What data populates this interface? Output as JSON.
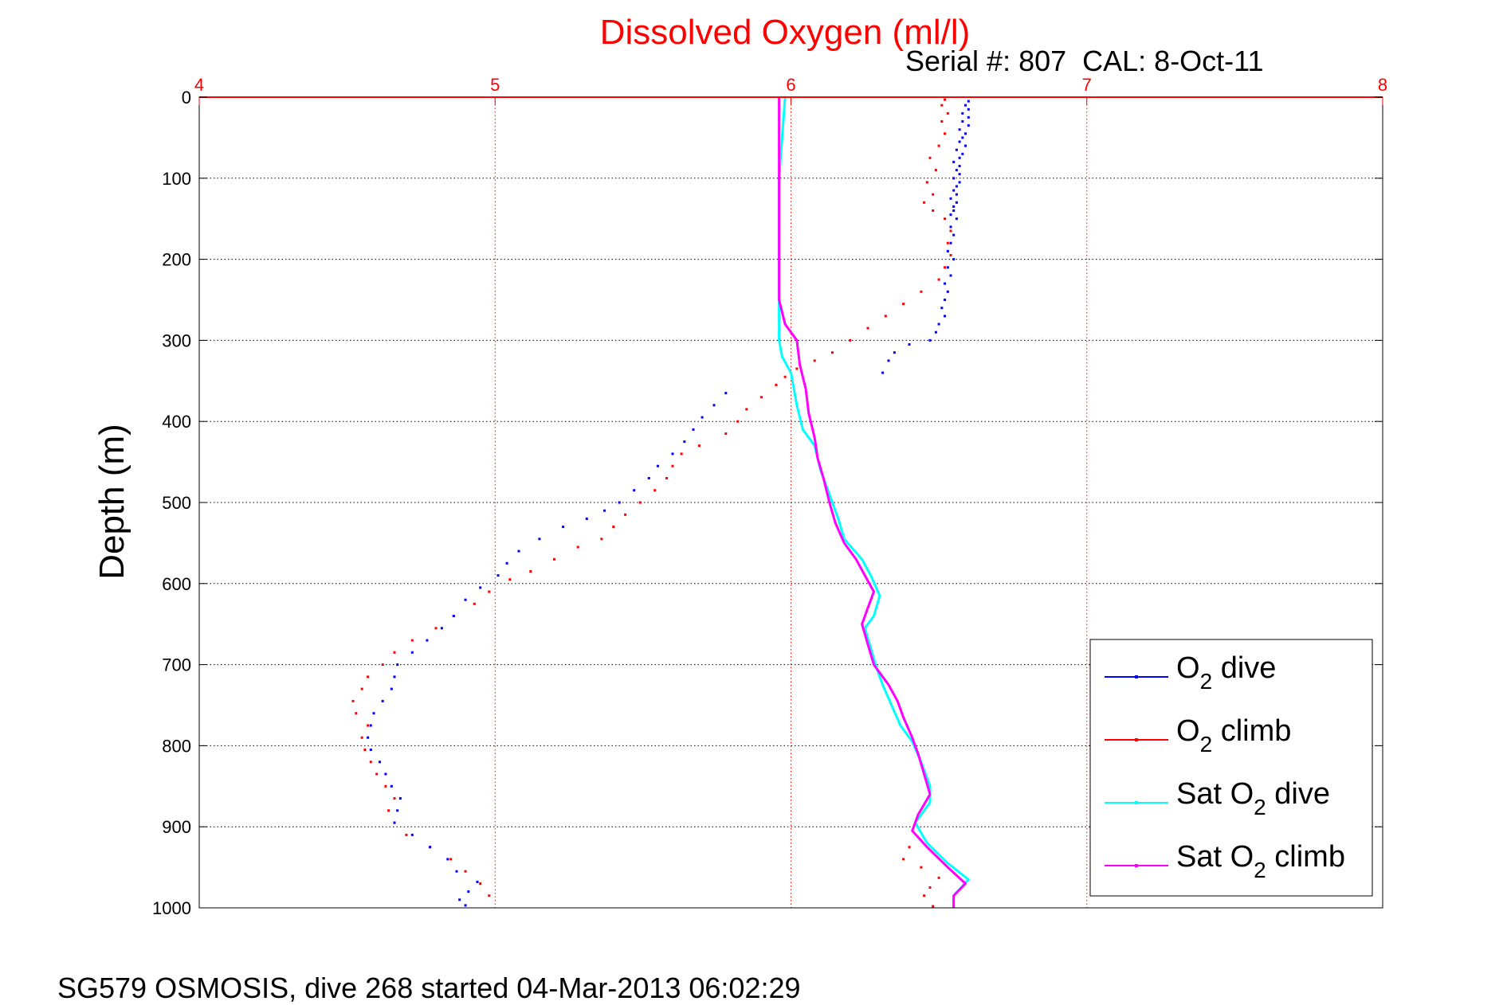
{
  "chart_data": {
    "type": "scatter",
    "title": "Dissolved Oxygen (ml/l)",
    "subtitle": "Serial #: 807  CAL: 8-Oct-11",
    "footer": "SG579 OSMOSIS, dive 268 started 04-Mar-2013 06:02:29",
    "xlabel": "",
    "ylabel": "Depth (m)",
    "xlim": [
      4,
      8
    ],
    "ylim": [
      0,
      1000
    ],
    "y_reversed": true,
    "x_axis_position": "top",
    "xticks": [
      4,
      5,
      6,
      7,
      8
    ],
    "yticks": [
      0,
      100,
      200,
      300,
      400,
      500,
      600,
      700,
      800,
      900,
      1000
    ],
    "grid": true,
    "legend_position": "bottom-right",
    "colors": {
      "title": "#ff0000",
      "xaxis": "#ff0000",
      "xgrid": "#ff0000",
      "ygrid": "#000000",
      "o2_dive": "#0000ff",
      "o2_climb": "#ff0000",
      "sat_dive": "#00ffff",
      "sat_climb": "#ff00ff"
    },
    "series": [
      {
        "key": "o2_dive",
        "label_main": "O",
        "label_sub": "2",
        "label_rest": " dive",
        "style": "dots",
        "points": [
          [
            6.6,
            5
          ],
          [
            6.59,
            10
          ],
          [
            6.6,
            15
          ],
          [
            6.58,
            20
          ],
          [
            6.6,
            25
          ],
          [
            6.58,
            30
          ],
          [
            6.6,
            35
          ],
          [
            6.57,
            40
          ],
          [
            6.59,
            45
          ],
          [
            6.58,
            50
          ],
          [
            6.57,
            55
          ],
          [
            6.59,
            60
          ],
          [
            6.56,
            65
          ],
          [
            6.58,
            70
          ],
          [
            6.57,
            75
          ],
          [
            6.55,
            80
          ],
          [
            6.57,
            85
          ],
          [
            6.56,
            90
          ],
          [
            6.57,
            95
          ],
          [
            6.55,
            100
          ],
          [
            6.57,
            105
          ],
          [
            6.56,
            110
          ],
          [
            6.55,
            115
          ],
          [
            6.56,
            120
          ],
          [
            6.54,
            125
          ],
          [
            6.56,
            130
          ],
          [
            6.55,
            135
          ],
          [
            6.55,
            140
          ],
          [
            6.54,
            145
          ],
          [
            6.56,
            150
          ],
          [
            6.54,
            160
          ],
          [
            6.55,
            170
          ],
          [
            6.54,
            180
          ],
          [
            6.53,
            190
          ],
          [
            6.55,
            200
          ],
          [
            6.53,
            210
          ],
          [
            6.54,
            220
          ],
          [
            6.52,
            230
          ],
          [
            6.53,
            240
          ],
          [
            6.52,
            250
          ],
          [
            6.51,
            260
          ],
          [
            6.52,
            270
          ],
          [
            6.5,
            280
          ],
          [
            6.49,
            290
          ],
          [
            6.47,
            300
          ],
          [
            6.4,
            305
          ],
          [
            6.35,
            315
          ],
          [
            6.33,
            325
          ],
          [
            6.31,
            340
          ],
          [
            5.78,
            365
          ],
          [
            5.74,
            380
          ],
          [
            5.7,
            395
          ],
          [
            5.67,
            410
          ],
          [
            5.64,
            425
          ],
          [
            5.6,
            440
          ],
          [
            5.55,
            455
          ],
          [
            5.52,
            470
          ],
          [
            5.47,
            485
          ],
          [
            5.42,
            500
          ],
          [
            5.37,
            510
          ],
          [
            5.31,
            520
          ],
          [
            5.23,
            530
          ],
          [
            5.15,
            545
          ],
          [
            5.08,
            560
          ],
          [
            5.04,
            575
          ],
          [
            5.01,
            590
          ],
          [
            4.95,
            605
          ],
          [
            4.9,
            620
          ],
          [
            4.86,
            640
          ],
          [
            4.82,
            655
          ],
          [
            4.77,
            670
          ],
          [
            4.72,
            685
          ],
          [
            4.67,
            700
          ],
          [
            4.66,
            715
          ],
          [
            4.65,
            730
          ],
          [
            4.62,
            745
          ],
          [
            4.59,
            760
          ],
          [
            4.58,
            775
          ],
          [
            4.57,
            790
          ],
          [
            4.58,
            805
          ],
          [
            4.61,
            820
          ],
          [
            4.63,
            835
          ],
          [
            4.65,
            850
          ],
          [
            4.68,
            865
          ],
          [
            4.67,
            880
          ],
          [
            4.66,
            895
          ],
          [
            4.72,
            910
          ],
          [
            4.78,
            925
          ],
          [
            4.84,
            940
          ],
          [
            4.87,
            955
          ],
          [
            4.94,
            968
          ],
          [
            4.91,
            980
          ],
          [
            4.88,
            990
          ],
          [
            4.9,
            997
          ]
        ]
      },
      {
        "key": "o2_climb",
        "label_main": "O",
        "label_sub": "2",
        "label_rest": " climb",
        "style": "dots",
        "points": [
          [
            6.48,
            998
          ],
          [
            6.45,
            985
          ],
          [
            6.47,
            975
          ],
          [
            6.5,
            963
          ],
          [
            6.44,
            950
          ],
          [
            6.38,
            940
          ],
          [
            6.4,
            925
          ],
          [
            4.98,
            985
          ],
          [
            4.95,
            970
          ],
          [
            4.9,
            955
          ],
          [
            4.85,
            940
          ],
          [
            4.78,
            925
          ],
          [
            4.7,
            910
          ],
          [
            4.66,
            895
          ],
          [
            4.64,
            880
          ],
          [
            4.66,
            865
          ],
          [
            4.63,
            850
          ],
          [
            4.6,
            835
          ],
          [
            4.58,
            820
          ],
          [
            4.56,
            805
          ],
          [
            4.55,
            790
          ],
          [
            4.57,
            775
          ],
          [
            4.53,
            760
          ],
          [
            4.52,
            745
          ],
          [
            4.55,
            730
          ],
          [
            4.57,
            715
          ],
          [
            4.62,
            700
          ],
          [
            4.66,
            685
          ],
          [
            4.72,
            670
          ],
          [
            4.8,
            655
          ],
          [
            4.86,
            640
          ],
          [
            4.93,
            625
          ],
          [
            4.98,
            610
          ],
          [
            5.05,
            595
          ],
          [
            5.12,
            585
          ],
          [
            5.2,
            570
          ],
          [
            5.28,
            555
          ],
          [
            5.36,
            545
          ],
          [
            5.4,
            530
          ],
          [
            5.44,
            515
          ],
          [
            5.49,
            500
          ],
          [
            5.54,
            485
          ],
          [
            5.58,
            470
          ],
          [
            5.6,
            455
          ],
          [
            5.63,
            440
          ],
          [
            5.69,
            430
          ],
          [
            5.78,
            415
          ],
          [
            5.82,
            400
          ],
          [
            5.85,
            385
          ],
          [
            5.9,
            370
          ],
          [
            5.95,
            355
          ],
          [
            5.98,
            345
          ],
          [
            6.02,
            335
          ],
          [
            6.08,
            325
          ],
          [
            6.14,
            315
          ],
          [
            6.2,
            300
          ],
          [
            6.26,
            285
          ],
          [
            6.32,
            270
          ],
          [
            6.38,
            255
          ],
          [
            6.44,
            240
          ],
          [
            6.5,
            225
          ],
          [
            6.52,
            210
          ],
          [
            6.54,
            195
          ],
          [
            6.53,
            180
          ],
          [
            6.54,
            165
          ],
          [
            6.52,
            150
          ],
          [
            6.48,
            140
          ],
          [
            6.45,
            130
          ],
          [
            6.48,
            120
          ],
          [
            6.46,
            105
          ],
          [
            6.49,
            90
          ],
          [
            6.47,
            75
          ],
          [
            6.5,
            60
          ],
          [
            6.52,
            45
          ],
          [
            6.51,
            30
          ],
          [
            6.53,
            20
          ],
          [
            6.51,
            10
          ],
          [
            6.52,
            3
          ]
        ]
      },
      {
        "key": "sat_dive",
        "label_main": "Sat O",
        "label_sub": "2",
        "label_rest": " dive",
        "style": "line",
        "points": [
          [
            5.98,
            0
          ],
          [
            5.97,
            50
          ],
          [
            5.96,
            100
          ],
          [
            5.96,
            150
          ],
          [
            5.96,
            200
          ],
          [
            5.96,
            250
          ],
          [
            5.96,
            280
          ],
          [
            5.96,
            300
          ],
          [
            5.97,
            320
          ],
          [
            6.0,
            340
          ],
          [
            6.02,
            380
          ],
          [
            6.04,
            410
          ],
          [
            6.08,
            430
          ],
          [
            6.1,
            460
          ],
          [
            6.13,
            490
          ],
          [
            6.16,
            520
          ],
          [
            6.18,
            545
          ],
          [
            6.24,
            570
          ],
          [
            6.27,
            590
          ],
          [
            6.3,
            615
          ],
          [
            6.28,
            640
          ],
          [
            6.25,
            655
          ],
          [
            6.27,
            680
          ],
          [
            6.29,
            705
          ],
          [
            6.31,
            725
          ],
          [
            6.34,
            750
          ],
          [
            6.37,
            775
          ],
          [
            6.41,
            795
          ],
          [
            6.44,
            820
          ],
          [
            6.47,
            850
          ],
          [
            6.47,
            870
          ],
          [
            6.42,
            895
          ],
          [
            6.46,
            920
          ],
          [
            6.53,
            945
          ],
          [
            6.6,
            965
          ],
          [
            6.55,
            985
          ],
          [
            6.55,
            1000
          ]
        ]
      },
      {
        "key": "sat_climb",
        "label_main": "Sat O",
        "label_sub": "2",
        "label_rest": " climb",
        "style": "line",
        "points": [
          [
            5.96,
            0
          ],
          [
            5.96,
            50
          ],
          [
            5.96,
            100
          ],
          [
            5.96,
            150
          ],
          [
            5.96,
            200
          ],
          [
            5.96,
            250
          ],
          [
            5.98,
            280
          ],
          [
            6.02,
            300
          ],
          [
            6.03,
            330
          ],
          [
            6.05,
            360
          ],
          [
            6.06,
            390
          ],
          [
            6.08,
            420
          ],
          [
            6.09,
            445
          ],
          [
            6.11,
            470
          ],
          [
            6.13,
            500
          ],
          [
            6.15,
            525
          ],
          [
            6.18,
            550
          ],
          [
            6.22,
            570
          ],
          [
            6.25,
            590
          ],
          [
            6.28,
            610
          ],
          [
            6.26,
            630
          ],
          [
            6.24,
            650
          ],
          [
            6.26,
            675
          ],
          [
            6.28,
            700
          ],
          [
            6.33,
            725
          ],
          [
            6.36,
            745
          ],
          [
            6.38,
            765
          ],
          [
            6.41,
            790
          ],
          [
            6.43,
            810
          ],
          [
            6.45,
            835
          ],
          [
            6.47,
            860
          ],
          [
            6.43,
            885
          ],
          [
            6.41,
            905
          ],
          [
            6.46,
            925
          ],
          [
            6.53,
            950
          ],
          [
            6.59,
            970
          ],
          [
            6.55,
            985
          ],
          [
            6.55,
            1000
          ]
        ]
      }
    ]
  }
}
